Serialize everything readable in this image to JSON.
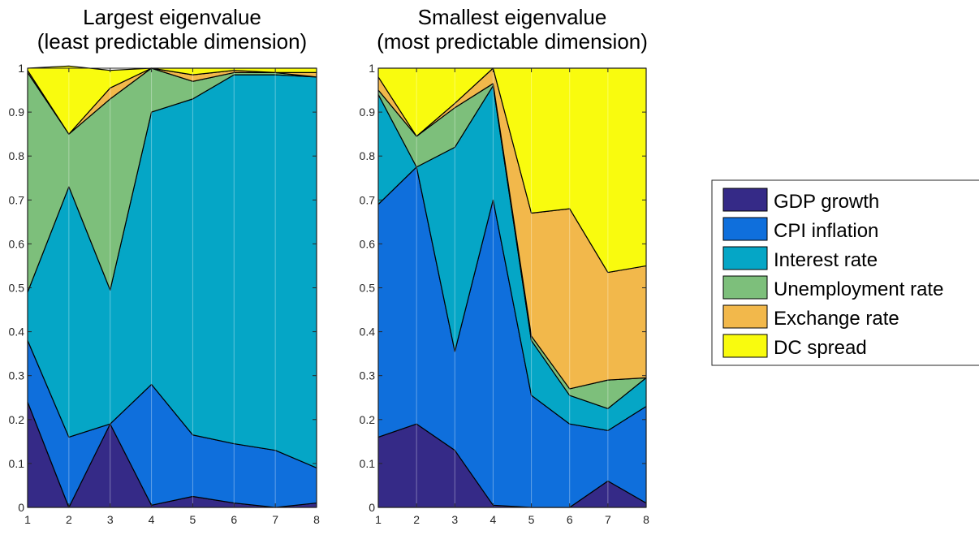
{
  "legend": {
    "entries": [
      {
        "name": "GDP growth",
        "color": "#352a87"
      },
      {
        "name": "CPI inflation",
        "color": "#0f6fdc"
      },
      {
        "name": "Interest rate",
        "color": "#05a6c6"
      },
      {
        "name": "Unemployment rate",
        "color": "#7dbf7b"
      },
      {
        "name": "Exchange rate",
        "color": "#f2b84b"
      },
      {
        "name": "DC spread",
        "color": "#f9fb0e"
      }
    ],
    "placement": "right"
  },
  "chart_data": [
    {
      "type": "area",
      "stacked": true,
      "title": [
        "Largest eigenvalue",
        "(least predictable dimension)"
      ],
      "xlabel": "",
      "ylabel": "",
      "x": [
        1,
        2,
        3,
        4,
        5,
        6,
        7,
        8
      ],
      "xticks": [
        1,
        2,
        3,
        4,
        5,
        6,
        7,
        8
      ],
      "ylim": [
        0,
        1
      ],
      "yticks": [
        "0",
        "0.1",
        "0.2",
        "0.3",
        "0.4",
        "0.5",
        "0.6",
        "0.7",
        "0.8",
        "0.9",
        "1"
      ],
      "grid": true,
      "series": [
        {
          "name": "GDP growth",
          "values": [
            0.24,
            0.0,
            0.19,
            0.005,
            0.025,
            0.01,
            0.0,
            0.01
          ]
        },
        {
          "name": "CPI inflation",
          "values": [
            0.14,
            0.16,
            0.0,
            0.275,
            0.14,
            0.135,
            0.13,
            0.08
          ]
        },
        {
          "name": "Interest rate",
          "values": [
            0.11,
            0.57,
            0.305,
            0.62,
            0.765,
            0.84,
            0.855,
            0.89
          ]
        },
        {
          "name": "Unemployment rate",
          "values": [
            0.5,
            0.12,
            0.435,
            0.1,
            0.04,
            0.005,
            0.005,
            0.0
          ]
        },
        {
          "name": "Exchange rate",
          "values": [
            0.005,
            0.0,
            0.025,
            0.0,
            0.015,
            0.005,
            0.0,
            0.01
          ]
        },
        {
          "name": "DC spread",
          "values": [
            0.005,
            0.155,
            0.04,
            0.0,
            0.015,
            0.005,
            0.01,
            0.01
          ]
        }
      ]
    },
    {
      "type": "area",
      "stacked": true,
      "title": [
        "Smallest eigenvalue",
        "(most predictable dimension)"
      ],
      "xlabel": "",
      "ylabel": "",
      "x": [
        1,
        2,
        3,
        4,
        5,
        6,
        7,
        8
      ],
      "xticks": [
        1,
        2,
        3,
        4,
        5,
        6,
        7,
        8
      ],
      "ylim": [
        0,
        1
      ],
      "yticks": [
        "0",
        "0.1",
        "0.2",
        "0.3",
        "0.4",
        "0.5",
        "0.6",
        "0.7",
        "0.8",
        "0.9",
        "1"
      ],
      "grid": true,
      "series": [
        {
          "name": "GDP growth",
          "values": [
            0.16,
            0.19,
            0.13,
            0.005,
            0.0,
            0.0,
            0.06,
            0.01
          ]
        },
        {
          "name": "CPI inflation",
          "values": [
            0.53,
            0.585,
            0.225,
            0.695,
            0.255,
            0.19,
            0.115,
            0.22
          ]
        },
        {
          "name": "Interest rate",
          "values": [
            0.25,
            0.0,
            0.465,
            0.26,
            0.125,
            0.065,
            0.05,
            0.065
          ]
        },
        {
          "name": "Unemployment rate",
          "values": [
            0.01,
            0.07,
            0.09,
            0.005,
            0.01,
            0.015,
            0.065,
            0.0
          ]
        },
        {
          "name": "Exchange rate",
          "values": [
            0.03,
            0.0,
            0.01,
            0.035,
            0.28,
            0.41,
            0.245,
            0.255
          ]
        },
        {
          "name": "DC spread",
          "values": [
            0.02,
            0.155,
            0.08,
            0.0,
            0.33,
            0.32,
            0.465,
            0.45
          ]
        }
      ]
    }
  ]
}
